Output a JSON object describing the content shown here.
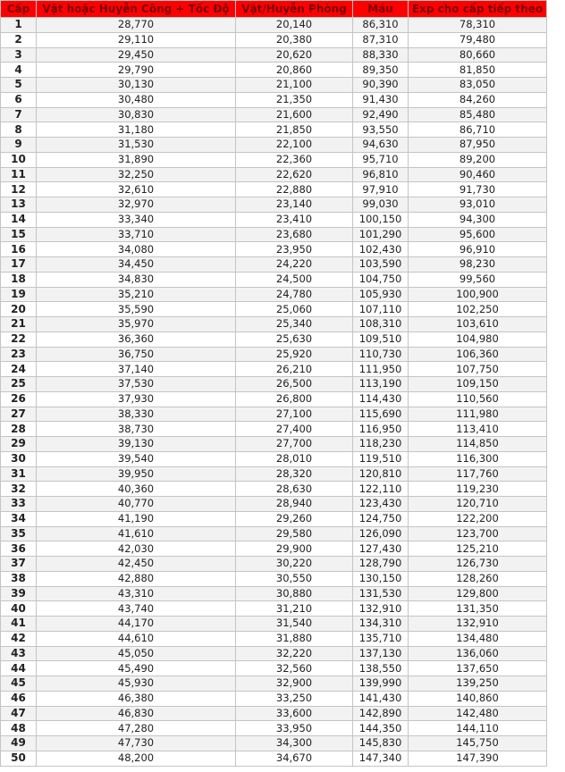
{
  "table": {
    "header_color": "#ff0000",
    "header_text_color": "#7a0000",
    "columns": [
      "Cấp",
      "Vật hoặc Huyễn Công + Tốc Độ",
      "Vật/Huyễn Phòng",
      "Máu",
      "Exp cho cấp tiếp theo"
    ],
    "rows": [
      [
        "1",
        "28,770",
        "20,140",
        "86,310",
        "78,310"
      ],
      [
        "2",
        "29,110",
        "20,380",
        "87,310",
        "79,480"
      ],
      [
        "3",
        "29,450",
        "20,620",
        "88,330",
        "80,660"
      ],
      [
        "4",
        "29,790",
        "20,860",
        "89,350",
        "81,850"
      ],
      [
        "5",
        "30,130",
        "21,100",
        "90,390",
        "83,050"
      ],
      [
        "6",
        "30,480",
        "21,350",
        "91,430",
        "84,260"
      ],
      [
        "7",
        "30,830",
        "21,600",
        "92,490",
        "85,480"
      ],
      [
        "8",
        "31,180",
        "21,850",
        "93,550",
        "86,710"
      ],
      [
        "9",
        "31,530",
        "22,100",
        "94,630",
        "87,950"
      ],
      [
        "10",
        "31,890",
        "22,360",
        "95,710",
        "89,200"
      ],
      [
        "11",
        "32,250",
        "22,620",
        "96,810",
        "90,460"
      ],
      [
        "12",
        "32,610",
        "22,880",
        "97,910",
        "91,730"
      ],
      [
        "13",
        "32,970",
        "23,140",
        "99,030",
        "93,010"
      ],
      [
        "14",
        "33,340",
        "23,410",
        "100,150",
        "94,300"
      ],
      [
        "15",
        "33,710",
        "23,680",
        "101,290",
        "95,600"
      ],
      [
        "16",
        "34,080",
        "23,950",
        "102,430",
        "96,910"
      ],
      [
        "17",
        "34,450",
        "24,220",
        "103,590",
        "98,230"
      ],
      [
        "18",
        "34,830",
        "24,500",
        "104,750",
        "99,560"
      ],
      [
        "19",
        "35,210",
        "24,780",
        "105,930",
        "100,900"
      ],
      [
        "20",
        "35,590",
        "25,060",
        "107,110",
        "102,250"
      ],
      [
        "21",
        "35,970",
        "25,340",
        "108,310",
        "103,610"
      ],
      [
        "22",
        "36,360",
        "25,630",
        "109,510",
        "104,980"
      ],
      [
        "23",
        "36,750",
        "25,920",
        "110,730",
        "106,360"
      ],
      [
        "24",
        "37,140",
        "26,210",
        "111,950",
        "107,750"
      ],
      [
        "25",
        "37,530",
        "26,500",
        "113,190",
        "109,150"
      ],
      [
        "26",
        "37,930",
        "26,800",
        "114,430",
        "110,560"
      ],
      [
        "27",
        "38,330",
        "27,100",
        "115,690",
        "111,980"
      ],
      [
        "28",
        "38,730",
        "27,400",
        "116,950",
        "113,410"
      ],
      [
        "29",
        "39,130",
        "27,700",
        "118,230",
        "114,850"
      ],
      [
        "30",
        "39,540",
        "28,010",
        "119,510",
        "116,300"
      ],
      [
        "31",
        "39,950",
        "28,320",
        "120,810",
        "117,760"
      ],
      [
        "32",
        "40,360",
        "28,630",
        "122,110",
        "119,230"
      ],
      [
        "33",
        "40,770",
        "28,940",
        "123,430",
        "120,710"
      ],
      [
        "34",
        "41,190",
        "29,260",
        "124,750",
        "122,200"
      ],
      [
        "35",
        "41,610",
        "29,580",
        "126,090",
        "123,700"
      ],
      [
        "36",
        "42,030",
        "29,900",
        "127,430",
        "125,210"
      ],
      [
        "37",
        "42,450",
        "30,220",
        "128,790",
        "126,730"
      ],
      [
        "38",
        "42,880",
        "30,550",
        "130,150",
        "128,260"
      ],
      [
        "39",
        "43,310",
        "30,880",
        "131,530",
        "129,800"
      ],
      [
        "40",
        "43,740",
        "31,210",
        "132,910",
        "131,350"
      ],
      [
        "41",
        "44,170",
        "31,540",
        "134,310",
        "132,910"
      ],
      [
        "42",
        "44,610",
        "31,880",
        "135,710",
        "134,480"
      ],
      [
        "43",
        "45,050",
        "32,220",
        "137,130",
        "136,060"
      ],
      [
        "44",
        "45,490",
        "32,560",
        "138,550",
        "137,650"
      ],
      [
        "45",
        "45,930",
        "32,900",
        "139,990",
        "139,250"
      ],
      [
        "46",
        "46,380",
        "33,250",
        "141,430",
        "140,860"
      ],
      [
        "47",
        "46,830",
        "33,600",
        "142,890",
        "142,480"
      ],
      [
        "48",
        "47,280",
        "33,950",
        "144,350",
        "144,110"
      ],
      [
        "49",
        "47,730",
        "34,300",
        "145,830",
        "145,750"
      ],
      [
        "50",
        "48,200",
        "34,670",
        "147,340",
        "147,390"
      ]
    ]
  }
}
